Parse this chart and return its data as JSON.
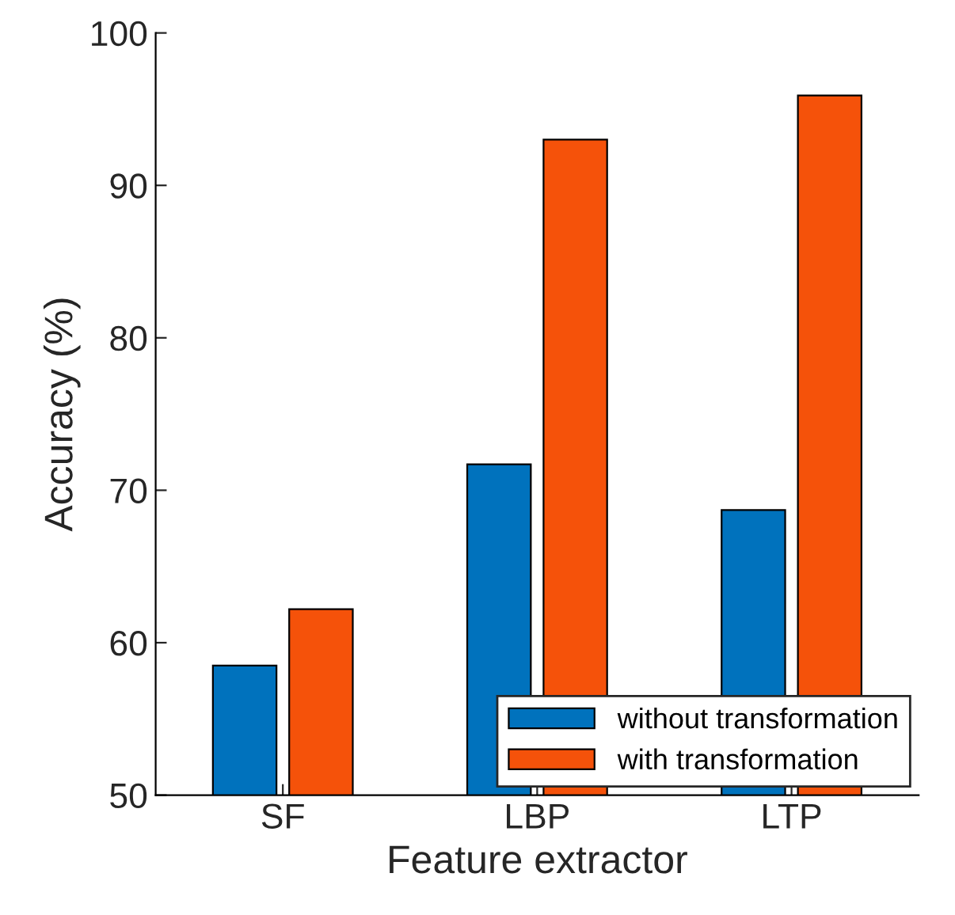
{
  "chart_data": {
    "type": "bar",
    "xlabel": "Feature extractor",
    "ylabel": "Accuracy (%)",
    "categories": [
      "SF",
      "LBP",
      "LTP"
    ],
    "series": [
      {
        "name": "without transformation",
        "color": "#0072bd",
        "values": [
          58.5,
          71.7,
          68.7
        ]
      },
      {
        "name": "with transformation",
        "color": "#f5520a",
        "values": [
          62.2,
          93.0,
          95.9
        ]
      }
    ],
    "ylim": [
      50,
      100
    ],
    "yticks": [
      50,
      60,
      70,
      80,
      90,
      100
    ],
    "legend": "bottom right"
  }
}
